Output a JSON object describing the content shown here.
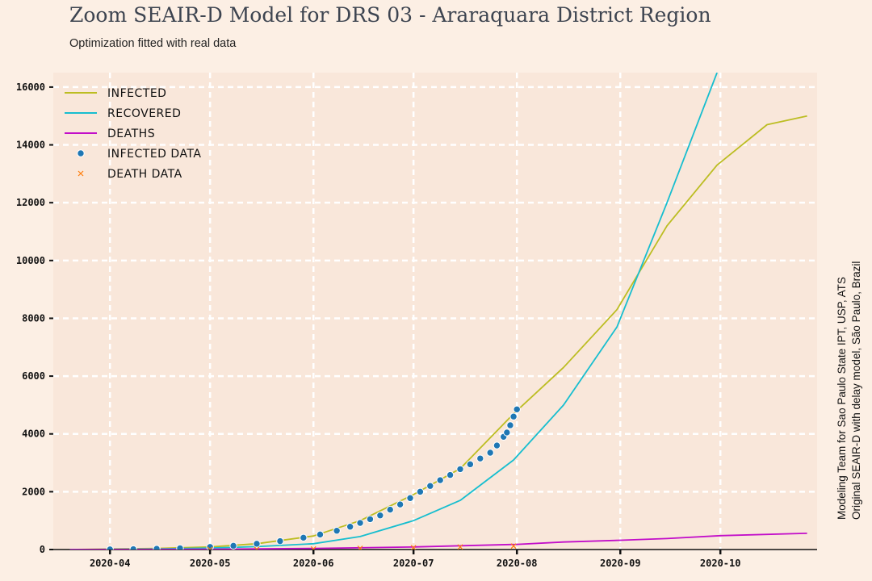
{
  "chart_data": {
    "type": "line",
    "title": "Zoom SEAIR-D Model for DRS 03 - Araraquara District Region",
    "subtitle": "Optimization fitted with real data",
    "side_credit": [
      "Modeling Team for Sao Paulo State IPT, USP, ATS",
      "Original SEAIR-D with delay model, São Paulo, Brazil"
    ],
    "xlabel": "",
    "ylabel": "",
    "x_range": [
      "2020-03-15",
      "2020-10-30"
    ],
    "y_range": [
      0,
      16500
    ],
    "x_ticks": [
      "2020-04",
      "2020-05",
      "2020-06",
      "2020-07",
      "2020-08",
      "2020-09",
      "2020-10"
    ],
    "y_ticks": [
      0,
      2000,
      4000,
      6000,
      8000,
      10000,
      12000,
      14000,
      16000
    ],
    "grid": true,
    "legend_position": "top-left",
    "colors": {
      "infected": "#bcbd22",
      "recovered": "#17becf",
      "deaths": "#c20ec9",
      "infected_data": "#1f77b4",
      "death_data": "#ff7f0e",
      "plot_bg": "#f9e7da",
      "page_bg": "#fcefe4",
      "grid": "#ffffff"
    },
    "series": [
      {
        "name": "INFECTED",
        "kind": "line",
        "points": [
          [
            "2020-03-20",
            0
          ],
          [
            "2020-04-01",
            20
          ],
          [
            "2020-04-15",
            40
          ],
          [
            "2020-05-01",
            90
          ],
          [
            "2020-05-15",
            200
          ],
          [
            "2020-06-01",
            470
          ],
          [
            "2020-06-15",
            1000
          ],
          [
            "2020-07-01",
            1900
          ],
          [
            "2020-07-15",
            2800
          ],
          [
            "2020-07-31",
            4700
          ],
          [
            "2020-08-15",
            6300
          ],
          [
            "2020-08-31",
            8300
          ],
          [
            "2020-09-15",
            11200
          ],
          [
            "2020-09-30",
            13300
          ],
          [
            "2020-10-15",
            14700
          ],
          [
            "2020-10-27",
            15000
          ]
        ]
      },
      {
        "name": "RECOVERED",
        "kind": "line",
        "points": [
          [
            "2020-03-20",
            0
          ],
          [
            "2020-04-15",
            20
          ],
          [
            "2020-05-01",
            50
          ],
          [
            "2020-05-15",
            100
          ],
          [
            "2020-06-01",
            200
          ],
          [
            "2020-06-15",
            450
          ],
          [
            "2020-07-01",
            1000
          ],
          [
            "2020-07-15",
            1700
          ],
          [
            "2020-07-31",
            3100
          ],
          [
            "2020-08-15",
            5000
          ],
          [
            "2020-08-31",
            7700
          ],
          [
            "2020-09-15",
            12000
          ],
          [
            "2020-09-30",
            16500
          ]
        ]
      },
      {
        "name": "DEATHS",
        "kind": "line",
        "points": [
          [
            "2020-03-20",
            0
          ],
          [
            "2020-05-01",
            10
          ],
          [
            "2020-06-01",
            40
          ],
          [
            "2020-07-01",
            90
          ],
          [
            "2020-08-01",
            180
          ],
          [
            "2020-08-15",
            260
          ],
          [
            "2020-09-01",
            320
          ],
          [
            "2020-09-15",
            380
          ],
          [
            "2020-10-01",
            480
          ],
          [
            "2020-10-27",
            560
          ]
        ]
      },
      {
        "name": "INFECTED DATA",
        "kind": "scatter",
        "points": [
          [
            "2020-04-01",
            5
          ],
          [
            "2020-04-08",
            12
          ],
          [
            "2020-04-15",
            25
          ],
          [
            "2020-04-22",
            45
          ],
          [
            "2020-05-01",
            90
          ],
          [
            "2020-05-08",
            130
          ],
          [
            "2020-05-15",
            200
          ],
          [
            "2020-05-22",
            290
          ],
          [
            "2020-05-29",
            410
          ],
          [
            "2020-06-03",
            520
          ],
          [
            "2020-06-08",
            650
          ],
          [
            "2020-06-12",
            790
          ],
          [
            "2020-06-15",
            920
          ],
          [
            "2020-06-18",
            1050
          ],
          [
            "2020-06-21",
            1180
          ],
          [
            "2020-06-24",
            1380
          ],
          [
            "2020-06-27",
            1560
          ],
          [
            "2020-06-30",
            1780
          ],
          [
            "2020-07-03",
            2000
          ],
          [
            "2020-07-06",
            2200
          ],
          [
            "2020-07-09",
            2400
          ],
          [
            "2020-07-12",
            2580
          ],
          [
            "2020-07-15",
            2780
          ],
          [
            "2020-07-18",
            2950
          ],
          [
            "2020-07-21",
            3150
          ],
          [
            "2020-07-24",
            3350
          ],
          [
            "2020-07-26",
            3600
          ],
          [
            "2020-07-28",
            3900
          ],
          [
            "2020-07-29",
            4050
          ],
          [
            "2020-07-30",
            4300
          ],
          [
            "2020-07-31",
            4600
          ],
          [
            "2020-08-01",
            4850
          ]
        ]
      },
      {
        "name": "DEATH DATA",
        "kind": "scatter",
        "points": [
          [
            "2020-05-01",
            2
          ],
          [
            "2020-05-15",
            8
          ],
          [
            "2020-06-01",
            20
          ],
          [
            "2020-06-15",
            40
          ],
          [
            "2020-07-01",
            65
          ],
          [
            "2020-07-15",
            90
          ],
          [
            "2020-07-31",
            120
          ]
        ]
      }
    ]
  }
}
